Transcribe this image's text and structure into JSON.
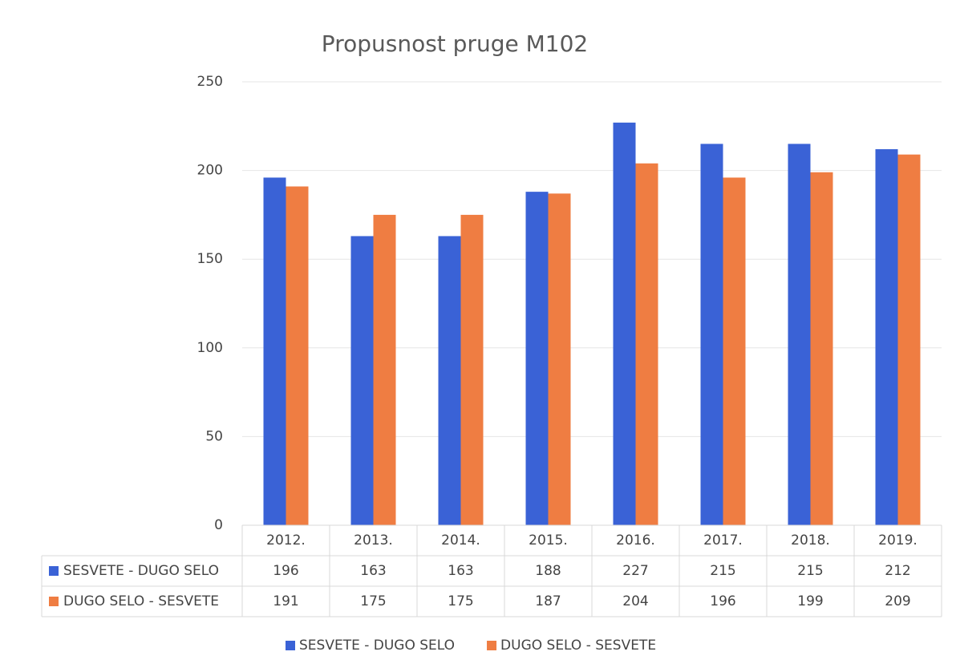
{
  "chart_data": {
    "type": "bar",
    "title": "Propusnost pruge M102",
    "categories": [
      "2012.",
      "2013.",
      "2014.",
      "2015.",
      "2016.",
      "2017.",
      "2018.",
      "2019."
    ],
    "series": [
      {
        "name": "SESVETE - DUGO SELO",
        "color": "#3a62d6",
        "values": [
          196,
          163,
          163,
          188,
          227,
          215,
          215,
          212
        ]
      },
      {
        "name": "DUGO SELO - SESVETE",
        "color": "#ef7d42",
        "values": [
          191,
          175,
          175,
          187,
          204,
          196,
          199,
          209
        ]
      }
    ],
    "ylim": [
      0,
      250
    ],
    "yticks": [
      0,
      50,
      100,
      150,
      200,
      250
    ],
    "grid": true,
    "legend": "bottom",
    "data_table": true
  }
}
